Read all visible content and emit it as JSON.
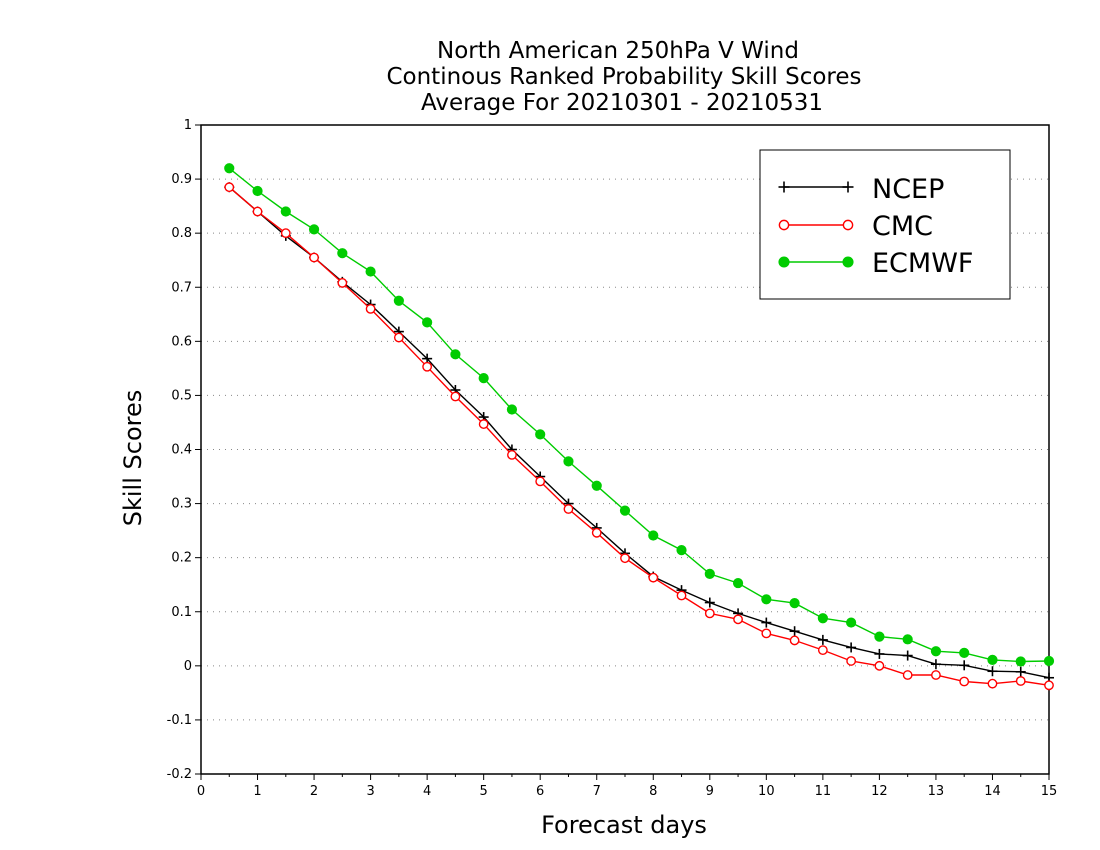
{
  "chart_data": {
    "type": "line",
    "title": [
      "North American 250hPa V Wind",
      "Continous Ranked Probability Skill Scores",
      "Average For 20210301 - 20210531"
    ],
    "xlabel": "Forecast days",
    "ylabel": "Skill Scores",
    "xlim": [
      0,
      15
    ],
    "ylim": [
      -0.2,
      1
    ],
    "xticks": [
      "0",
      "1",
      "2",
      "3",
      "4",
      "5",
      "6",
      "7",
      "8",
      "9",
      "10",
      "11",
      "12",
      "13",
      "14",
      "15"
    ],
    "yticks": [
      "-0.2",
      "-0.1",
      "0",
      "0.1",
      "0.2",
      "0.3",
      "0.4",
      "0.5",
      "0.6",
      "0.7",
      "0.8",
      "0.9",
      "1"
    ],
    "grid": "horizontal dotted",
    "legend_position": "top-right",
    "x": [
      0.5,
      1,
      1.5,
      2,
      2.5,
      3,
      3.5,
      4,
      4.5,
      5,
      5.5,
      6,
      6.5,
      7,
      7.5,
      8,
      8.5,
      9,
      9.5,
      10,
      10.5,
      11,
      11.5,
      12,
      12.5,
      13,
      13.5,
      14,
      14.5,
      15
    ],
    "series": [
      {
        "name": "NCEP",
        "color": "#000000",
        "marker": "plus",
        "values": [
          0.885,
          0.84,
          0.795,
          0.755,
          0.71,
          0.668,
          0.618,
          0.568,
          0.51,
          0.46,
          0.4,
          0.35,
          0.3,
          0.255,
          0.208,
          0.165,
          0.14,
          0.117,
          0.097,
          0.08,
          0.064,
          0.048,
          0.034,
          0.022,
          0.019,
          0.003,
          0.001,
          -0.01,
          -0.011,
          -0.022
        ]
      },
      {
        "name": "CMC",
        "color": "#ff0000",
        "marker": "open-circle",
        "values": [
          0.885,
          0.84,
          0.8,
          0.755,
          0.708,
          0.66,
          0.607,
          0.553,
          0.498,
          0.447,
          0.39,
          0.341,
          0.29,
          0.246,
          0.199,
          0.163,
          0.13,
          0.097,
          0.086,
          0.06,
          0.047,
          0.029,
          0.009,
          0.0,
          -0.017,
          -0.017,
          -0.029,
          -0.033,
          -0.028,
          -0.036
        ]
      },
      {
        "name": "ECMWF",
        "color": "#00cc00",
        "marker": "filled-circle",
        "values": [
          0.92,
          0.878,
          0.84,
          0.807,
          0.763,
          0.729,
          0.675,
          0.635,
          0.576,
          0.532,
          0.474,
          0.428,
          0.378,
          0.333,
          0.287,
          0.241,
          0.214,
          0.17,
          0.153,
          0.123,
          0.116,
          0.088,
          0.08,
          0.054,
          0.049,
          0.027,
          0.024,
          0.011,
          0.008,
          0.009
        ]
      }
    ]
  }
}
